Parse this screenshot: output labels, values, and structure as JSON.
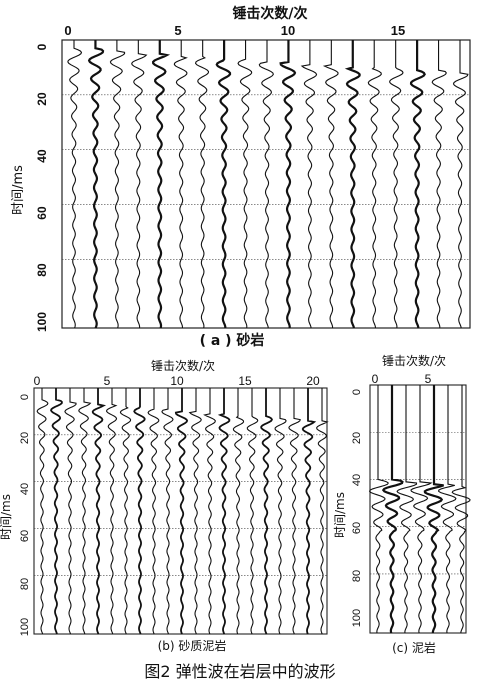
{
  "figure": {
    "caption": "图2 弹性波在岩层中的波形"
  },
  "panels": [
    {
      "id": "a",
      "label": "( a ) 砂岩",
      "x_title": "锤击次数/次",
      "y_title": "时间/ms",
      "x_ticks": [
        "0",
        "5",
        "10",
        "15"
      ],
      "y_ticks": [
        "0",
        "20",
        "40",
        "60",
        "80",
        "100"
      ],
      "traces": 19
    },
    {
      "id": "b",
      "label": "(b) 砂质泥岩",
      "x_title": "锤击次数/次",
      "y_title": "时间/ms",
      "x_ticks": [
        "0",
        "5",
        "10",
        "15",
        "20"
      ],
      "y_ticks": [
        "0",
        "20",
        "40",
        "60",
        "80",
        "100"
      ],
      "traces": 21
    },
    {
      "id": "c",
      "label": "(c) 泥岩",
      "x_title": "锤击次数/次",
      "y_title": "时间/ms",
      "x_ticks": [
        "0",
        "5"
      ],
      "y_ticks": [
        "0",
        "20",
        "40",
        "60",
        "80",
        "100"
      ],
      "traces": 7
    }
  ],
  "chart_data": [
    {
      "type": "line",
      "title": "( a ) 砂岩",
      "xlabel": "锤击次数/次",
      "ylabel": "时间/ms",
      "xlim": [
        0,
        18
      ],
      "ylim": [
        0,
        105
      ],
      "y_reversed": true,
      "grid": true,
      "x_ticks": [
        0,
        5,
        10,
        15
      ],
      "y_ticks": [
        0,
        20,
        40,
        60,
        80,
        100
      ],
      "first_arrival_ms": [
        3,
        3,
        4,
        5,
        5,
        6,
        6,
        7,
        7,
        8,
        8,
        9,
        9,
        10,
        10,
        10,
        11,
        11,
        12
      ]
    },
    {
      "type": "line",
      "title": "(b) 砂质泥岩",
      "xlabel": "锤击次数/次",
      "ylabel": "时间/ms",
      "xlim": [
        0,
        21
      ],
      "ylim": [
        0,
        105
      ],
      "y_reversed": true,
      "grid": true,
      "x_ticks": [
        0,
        5,
        10,
        15,
        20
      ],
      "y_ticks": [
        0,
        20,
        40,
        60,
        80,
        100
      ],
      "first_arrival_ms": [
        5,
        5,
        6,
        6,
        7,
        7,
        8,
        8,
        9,
        9,
        10,
        10,
        11,
        11,
        12,
        12,
        12,
        13,
        13,
        14,
        14
      ]
    },
    {
      "type": "line",
      "title": "(c) 泥岩",
      "xlabel": "锤击次数/次",
      "ylabel": "时间/ms",
      "xlim": [
        0,
        7
      ],
      "ylim": [
        0,
        105
      ],
      "y_reversed": true,
      "grid": true,
      "x_ticks": [
        0,
        5
      ],
      "y_ticks": [
        0,
        20,
        40,
        60,
        80,
        100
      ],
      "first_arrival_ms": [
        40,
        40,
        41,
        41,
        42,
        42,
        43
      ]
    }
  ]
}
